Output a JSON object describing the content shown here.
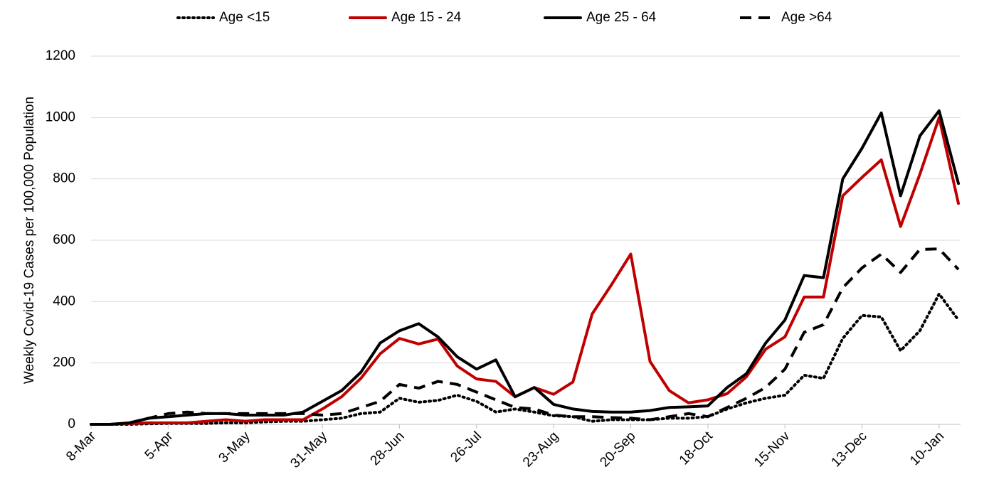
{
  "chart_data": {
    "type": "line",
    "y_label": "Weekly Covid-19 Cases per 100,000 Population",
    "categories": [
      "8-Mar",
      null,
      null,
      null,
      "5-Apr",
      null,
      null,
      null,
      "3-May",
      null,
      null,
      null,
      "31-May",
      null,
      null,
      null,
      "28-Jun",
      null,
      null,
      null,
      "26-Jul",
      null,
      null,
      null,
      "23-Aug",
      null,
      null,
      null,
      "20-Sep",
      null,
      null,
      null,
      "18-Oct",
      null,
      null,
      null,
      "15-Nov",
      null,
      null,
      null,
      "13-Dec",
      null,
      null,
      null,
      "10-Jan",
      null
    ],
    "series": [
      {
        "name": "Age <15",
        "color": "#000000",
        "dash": "dotted",
        "values": [
          0,
          0,
          0,
          2,
          3,
          3,
          3,
          5,
          5,
          8,
          10,
          10,
          15,
          20,
          35,
          40,
          85,
          72,
          78,
          95,
          75,
          40,
          50,
          40,
          28,
          25,
          10,
          15,
          15,
          15,
          20,
          20,
          25,
          50,
          70,
          85,
          95,
          160,
          150,
          280,
          355,
          350,
          240,
          305,
          425,
          340
        ]
      },
      {
        "name": "Age 15 - 24",
        "color": "#c00000",
        "dash": "solid",
        "values": [
          0,
          0,
          3,
          5,
          5,
          5,
          10,
          15,
          10,
          15,
          15,
          15,
          50,
          90,
          150,
          230,
          280,
          262,
          278,
          190,
          148,
          140,
          90,
          120,
          98,
          138,
          360,
          455,
          555,
          205,
          110,
          70,
          80,
          100,
          155,
          245,
          285,
          415,
          415,
          745,
          805,
          862,
          645,
          815,
          1000,
          720
        ]
      },
      {
        "name": "Age 25 - 64",
        "color": "#000000",
        "dash": "solid",
        "values": [
          0,
          0,
          5,
          20,
          25,
          30,
          35,
          35,
          30,
          30,
          30,
          40,
          75,
          110,
          170,
          265,
          305,
          328,
          285,
          220,
          180,
          210,
          90,
          120,
          65,
          50,
          42,
          40,
          40,
          45,
          55,
          57,
          60,
          120,
          165,
          265,
          340,
          485,
          478,
          800,
          900,
          1015,
          745,
          940,
          1022,
          785
        ]
      },
      {
        "name": "Age >64",
        "color": "#000000",
        "dash": "dashed",
        "values": [
          0,
          0,
          5,
          20,
          35,
          40,
          35,
          35,
          35,
          35,
          35,
          35,
          30,
          35,
          55,
          75,
          130,
          118,
          140,
          130,
          105,
          80,
          55,
          50,
          30,
          25,
          25,
          22,
          20,
          15,
          25,
          35,
          25,
          55,
          85,
          120,
          180,
          300,
          325,
          445,
          510,
          555,
          495,
          570,
          572,
          505
        ]
      }
    ],
    "ylim": [
      0,
      1200
    ],
    "yticks": [
      0,
      200,
      400,
      600,
      800,
      1000,
      1200
    ],
    "grid": true,
    "legend": "top"
  }
}
